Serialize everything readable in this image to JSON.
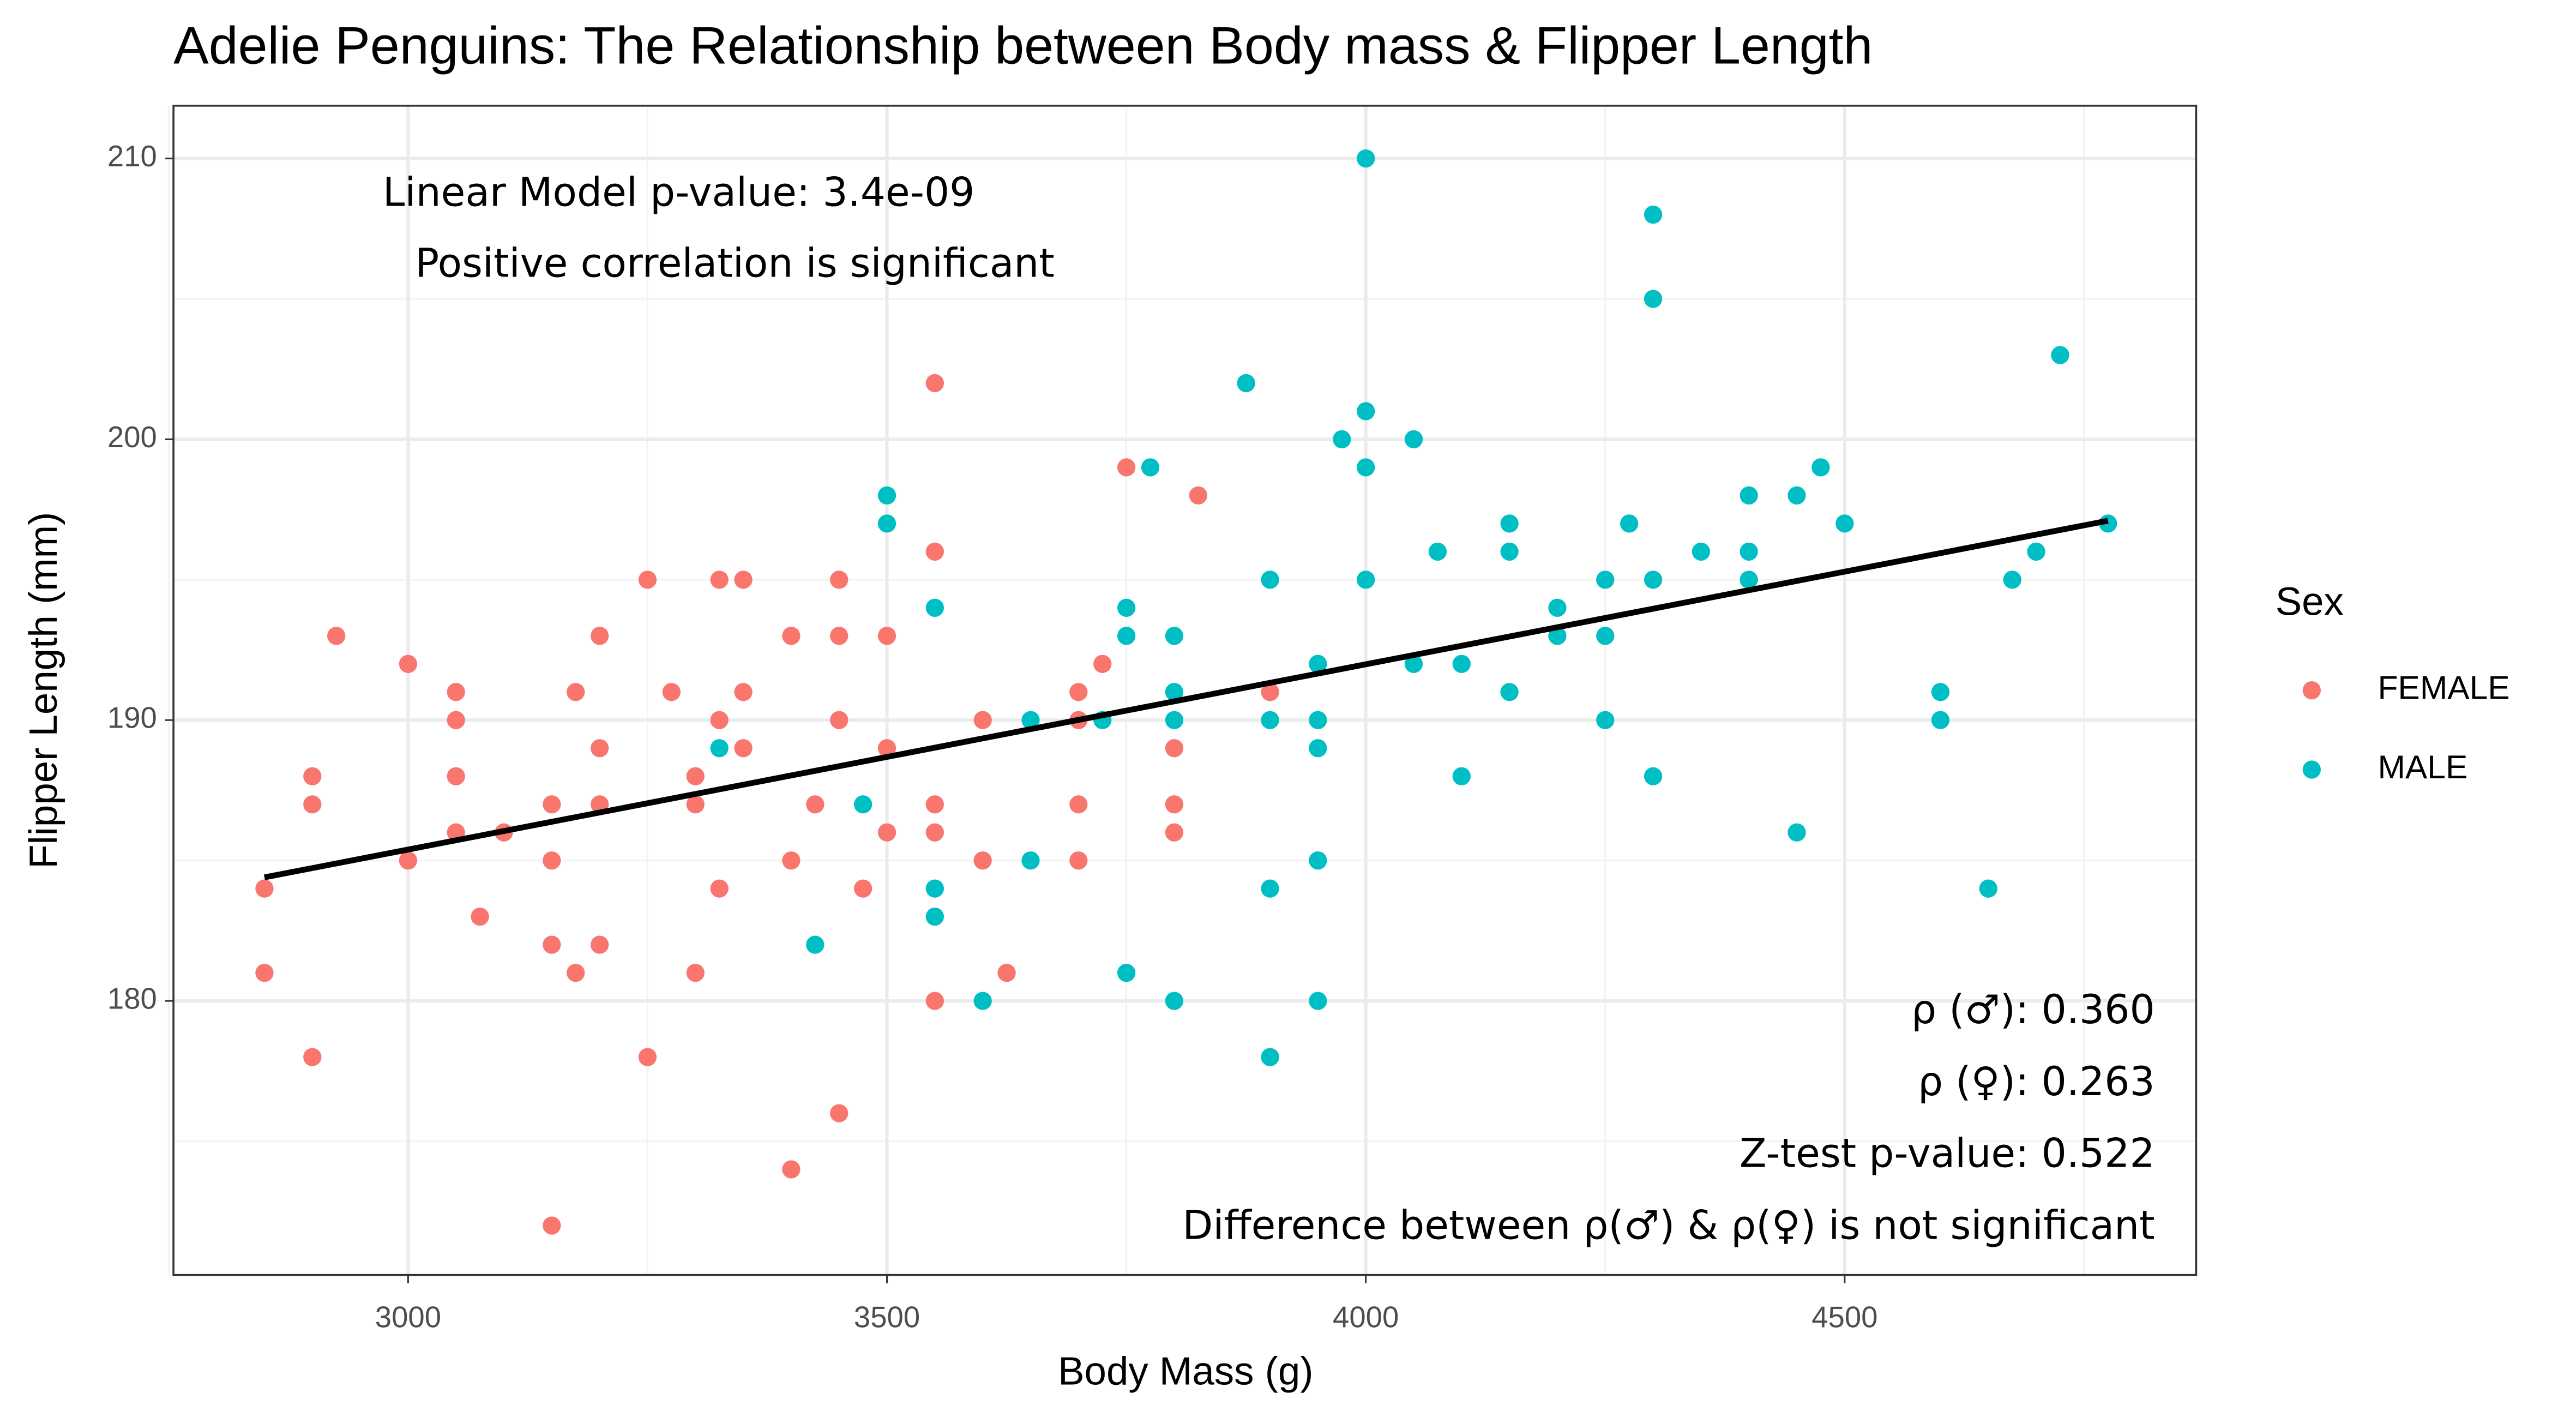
{
  "chart_data": {
    "type": "scatter",
    "title": "Adelie Penguins: The Relationship between Body mass & Flipper Length",
    "x_label": "Body Mass (g)",
    "y_label": "Flipper Length (mm)",
    "legend_title": "Sex",
    "xlim": [
      2755,
      4867
    ],
    "ylim": [
      170.24,
      211.88
    ],
    "xticks": [
      3000,
      3500,
      4000,
      4500
    ],
    "yticks": [
      180,
      190,
      200,
      210
    ],
    "x_minor_grid": [
      2750,
      3250,
      3750,
      4250,
      4750
    ],
    "y_minor_grid": [
      175,
      185,
      195,
      205
    ],
    "grid": true,
    "annotations_top": [
      "Linear Model p-value: 3.4e-09",
      "Positive correlation is significant"
    ],
    "annotations_bottom": [
      "ρ (♂): 0.360",
      "ρ (♀): 0.263",
      "Z-test p-value: 0.522",
      "Difference between ρ(♂) & ρ(♀) is not significant"
    ],
    "trend_line": {
      "color": "#000000",
      "x": [
        2850,
        4775
      ],
      "y": [
        184.4,
        197.1
      ]
    },
    "series": [
      {
        "name": "FEMALE",
        "color": "#F8766D",
        "x": [
          2850,
          2850,
          2900,
          2900,
          2900,
          2925,
          3000,
          3000,
          3050,
          3050,
          3050,
          3050,
          3100,
          3075,
          3150,
          3150,
          3150,
          3150,
          3175,
          3175,
          3200,
          3200,
          3200,
          3200,
          3250,
          3250,
          3275,
          3300,
          3300,
          3300,
          3325,
          3325,
          3325,
          3350,
          3350,
          3350,
          3400,
          3400,
          3400,
          3425,
          3450,
          3450,
          3450,
          3450,
          3475,
          3500,
          3500,
          3500,
          3550,
          3550,
          3550,
          3550,
          3550,
          3600,
          3600,
          3625,
          3700,
          3700,
          3700,
          3700,
          3725,
          3750,
          3825,
          3800,
          3800,
          3800,
          3900
        ],
        "values": [
          184,
          181,
          188,
          187,
          178,
          193,
          192,
          185,
          191,
          190,
          188,
          186,
          186,
          183,
          187,
          185,
          182,
          172,
          191,
          181,
          193,
          189,
          187,
          182,
          195,
          178,
          191,
          188,
          187,
          181,
          195,
          190,
          184,
          195,
          191,
          189,
          193,
          185,
          174,
          187,
          195,
          193,
          190,
          176,
          184,
          193,
          189,
          186,
          202,
          196,
          187,
          186,
          180,
          190,
          185,
          181,
          191,
          190,
          187,
          185,
          192,
          199,
          198,
          189,
          187,
          186,
          191
        ]
      },
      {
        "name": "MALE",
        "color": "#00BFC4",
        "x": [
          3325,
          3425,
          3475,
          3500,
          3500,
          3550,
          3550,
          3550,
          3600,
          3650,
          3650,
          3725,
          3750,
          3750,
          3750,
          3775,
          3800,
          3800,
          3800,
          3800,
          3875,
          3900,
          3900,
          3900,
          3900,
          3950,
          3950,
          3950,
          3950,
          3950,
          3975,
          4000,
          4000,
          4000,
          4000,
          4050,
          4050,
          4075,
          4100,
          4100,
          4150,
          4150,
          4150,
          4200,
          4200,
          4250,
          4250,
          4250,
          4275,
          4300,
          4300,
          4300,
          4300,
          4350,
          4400,
          4400,
          4400,
          4450,
          4450,
          4475,
          4500,
          4600,
          4600,
          4650,
          4675,
          4700,
          4725,
          4775
        ],
        "values": [
          189,
          182,
          187,
          198,
          197,
          194,
          184,
          183,
          180,
          190,
          185,
          190,
          194,
          193,
          181,
          199,
          193,
          191,
          190,
          180,
          202,
          195,
          190,
          184,
          178,
          192,
          190,
          189,
          185,
          180,
          200,
          210,
          201,
          199,
          195,
          200,
          192,
          196,
          192,
          188,
          197,
          196,
          191,
          194,
          193,
          195,
          193,
          190,
          197,
          208,
          205,
          195,
          188,
          196,
          198,
          196,
          195,
          198,
          186,
          199,
          197,
          191,
          190,
          184,
          195,
          196,
          203,
          197
        ]
      }
    ]
  }
}
